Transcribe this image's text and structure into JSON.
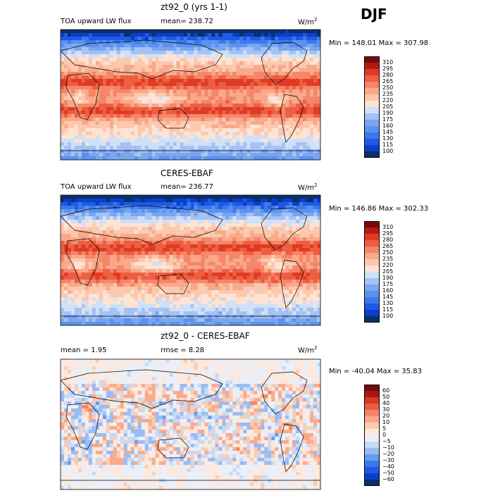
{
  "season": "DJF",
  "units_label": "W/m",
  "units_exp": "2",
  "panels": [
    {
      "title": "zt92_0 (yrs 1-1)",
      "left_label": "TOA upward LW flux",
      "stat1": "mean= 238.72",
      "stat2": "",
      "minmax": "Min = 148.01  Max = 307.98",
      "colorbar_levels": [
        "310",
        "295",
        "280",
        "265",
        "250",
        "235",
        "220",
        "205",
        "190",
        "175",
        "160",
        "145",
        "130",
        "115",
        "100"
      ]
    },
    {
      "title": "CERES-EBAF",
      "left_label": "TOA upward LW flux",
      "stat1": "mean= 236.77",
      "stat2": "",
      "minmax": "Min = 146.86  Max = 302.33",
      "colorbar_levels": [
        "310",
        "295",
        "280",
        "265",
        "250",
        "235",
        "220",
        "205",
        "190",
        "175",
        "160",
        "145",
        "130",
        "115",
        "100"
      ]
    },
    {
      "title": "zt92_0 - CERES-EBAF",
      "left_label": "mean =    1.95",
      "stat1": "rmse =    8.28",
      "stat2": "",
      "minmax": "Min = -40.04  Max =  35.83",
      "colorbar_levels": [
        "60",
        "50",
        "40",
        "30",
        "20",
        "10",
        "5",
        "0",
        "−5",
        "−10",
        "−20",
        "−30",
        "−40",
        "−50",
        "−60"
      ]
    }
  ],
  "chart_data": [
    {
      "type": "heatmap",
      "title": "zt92_0 (yrs 1-1)",
      "variable": "TOA upward LW flux",
      "units": "W/m2",
      "mean": 238.72,
      "min": 148.01,
      "max": 307.98,
      "levels": [
        100,
        115,
        130,
        145,
        160,
        175,
        190,
        205,
        220,
        235,
        250,
        265,
        280,
        295,
        310
      ]
    },
    {
      "type": "heatmap",
      "title": "CERES-EBAF",
      "variable": "TOA upward LW flux",
      "units": "W/m2",
      "mean": 236.77,
      "min": 146.86,
      "max": 302.33,
      "levels": [
        100,
        115,
        130,
        145,
        160,
        175,
        190,
        205,
        220,
        235,
        250,
        265,
        280,
        295,
        310
      ]
    },
    {
      "type": "heatmap",
      "title": "zt92_0 - CERES-EBAF",
      "units": "W/m2",
      "mean": 1.95,
      "rmse": 8.28,
      "min": -40.04,
      "max": 35.83,
      "levels": [
        -60,
        -50,
        -40,
        -30,
        -20,
        -10,
        -5,
        0,
        5,
        10,
        20,
        30,
        40,
        50,
        60
      ]
    }
  ],
  "colors": {
    "flux_scale": [
      "#08306b",
      "#0b3fc9",
      "#1f5ae6",
      "#3a7ae8",
      "#5a92ee",
      "#7aa6f0",
      "#a4c2f4",
      "#cfe0f7",
      "#fde3d4",
      "#fcc8ae",
      "#f9a98a",
      "#f5866a",
      "#ee5e42",
      "#df3b24",
      "#b51a12",
      "#7a0a08"
    ],
    "diff_scale": [
      "#08306b",
      "#0b3fc9",
      "#1f5ae6",
      "#3a7ae8",
      "#6a9cee",
      "#9bbcf2",
      "#c6daf6",
      "#e8f0fb",
      "#fde8dc",
      "#fbccb3",
      "#f8ab8c",
      "#f3866a",
      "#e95e43",
      "#d43b23",
      "#ab180f",
      "#7a0a08"
    ]
  }
}
